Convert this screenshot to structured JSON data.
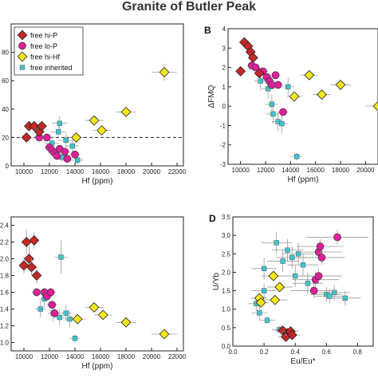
{
  "figure_title": "Granite of Butler Peak",
  "colors": {
    "free_hi_P": "#c62828",
    "free_lo_P": "#e0209a",
    "free_hi_Hf": "#f5e61c",
    "free_inherited": "#3cc6d0"
  },
  "chart_data": [
    {
      "panel": "",
      "type": "scatter",
      "xlabel": "Hf (ppm)",
      "ylabel": "",
      "xlim": [
        9000,
        22500
      ],
      "ylim": [
        0,
        100
      ],
      "xticks": [
        "10000",
        "12000",
        "14000",
        "16000",
        "18000",
        "20000",
        "22000"
      ],
      "yticks": [
        "0",
        "20",
        "40",
        "60",
        "80"
      ],
      "reference_line": {
        "y": 20,
        "style": "dashed"
      },
      "legend": {
        "placement": "top-left",
        "entries": [
          {
            "label": "free hi-P",
            "series": "free_hi_P"
          },
          {
            "label": "free lo-P",
            "series": "free_lo_P"
          },
          {
            "label": "free hi-Hf",
            "series": "free_hi_Hf"
          },
          {
            "label": "free inherited",
            "series": "free_inherited"
          }
        ]
      },
      "series": [
        {
          "name": "free hi-P",
          "key": "free_hi_P",
          "marker": "diamond",
          "points": [
            [
              10200,
              20,
              300,
              0
            ],
            [
              10400,
              28,
              300,
              0
            ],
            [
              10800,
              28,
              300,
              0
            ],
            [
              11200,
              24,
              300,
              0
            ],
            [
              11400,
              28,
              300,
              0
            ]
          ]
        },
        {
          "name": "free lo-P",
          "key": "free_lo_P",
          "marker": "circle",
          "points": [
            [
              11200,
              20,
              300,
              0
            ],
            [
              11800,
              20,
              400,
              0
            ],
            [
              12000,
              13,
              400,
              0
            ],
            [
              12200,
              11,
              400,
              0
            ],
            [
              12400,
              9,
              400,
              0
            ],
            [
              12600,
              7,
              400,
              0
            ],
            [
              12800,
              12,
              400,
              0
            ],
            [
              13400,
              5,
              400,
              0
            ],
            [
              14000,
              8,
              400,
              0
            ],
            [
              13200,
              10,
              400,
              0
            ]
          ]
        },
        {
          "name": "free hi-Hf",
          "key": "free_hi_Hf",
          "marker": "diamond",
          "points": [
            [
              14100,
              20,
              600,
              0
            ],
            [
              15500,
              32,
              700,
              0
            ],
            [
              16100,
              25,
              700,
              0
            ],
            [
              18000,
              38,
              800,
              0
            ],
            [
              21000,
              66,
              1000,
              6
            ]
          ]
        },
        {
          "name": "free inherited",
          "key": "free_inherited",
          "marker": "square",
          "points": [
            [
              12800,
              30,
              600,
              5
            ],
            [
              12700,
              24,
              600,
              5
            ],
            [
              13300,
              18,
              600,
              5
            ],
            [
              12200,
              16,
              600,
              4
            ],
            [
              13800,
              14,
              500,
              4
            ],
            [
              13000,
              6,
              500,
              3
            ],
            [
              14200,
              4,
              500,
              3
            ]
          ]
        }
      ]
    },
    {
      "panel": "B",
      "type": "scatter",
      "xlabel": "Hf (ppm)",
      "ylabel": "ΔFMQ",
      "xlim": [
        9000,
        21000
      ],
      "ylim": [
        -3,
        4
      ],
      "xticks": [
        "10000",
        "12000",
        "14000",
        "16000",
        "18000",
        "20000"
      ],
      "yticks": [
        "-3",
        "-2",
        "-1",
        "0",
        "1",
        "2",
        "3",
        "4"
      ],
      "series": [
        {
          "name": "free hi-P",
          "key": "free_hi_P",
          "marker": "diamond",
          "points": [
            [
              10300,
              3.3,
              300,
              0
            ],
            [
              10600,
              3.1,
              300,
              0
            ],
            [
              10800,
              2.8,
              300,
              0
            ],
            [
              11000,
              2.5,
              300,
              0
            ],
            [
              10000,
              1.8,
              300,
              0
            ],
            [
              11500,
              1.7,
              300,
              0
            ]
          ]
        },
        {
          "name": "free lo-P",
          "key": "free_lo_P",
          "marker": "circle",
          "points": [
            [
              10900,
              2.1,
              400,
              0
            ],
            [
              11200,
              2.0,
              400,
              0
            ],
            [
              11800,
              1.8,
              400,
              0
            ],
            [
              12100,
              1.5,
              400,
              0
            ],
            [
              12300,
              1.3,
              400,
              0
            ],
            [
              12500,
              1.1,
              400,
              0
            ],
            [
              13000,
              1.1,
              400,
              0
            ],
            [
              12800,
              1.6,
              400,
              0
            ],
            [
              13400,
              -0.3,
              400,
              0
            ]
          ]
        },
        {
          "name": "free hi-Hf",
          "key": "free_hi_Hf",
          "marker": "diamond",
          "points": [
            [
              14300,
              0.5,
              600,
              0
            ],
            [
              15500,
              1.6,
              700,
              0
            ],
            [
              16500,
              0.6,
              700,
              0
            ],
            [
              18000,
              1.1,
              800,
              0
            ],
            [
              21000,
              0,
              1000,
              0
            ]
          ]
        },
        {
          "name": "free inherited",
          "key": "free_inherited",
          "marker": "square",
          "points": [
            [
              11600,
              1.3,
              500,
              0.5
            ],
            [
              12200,
              0.9,
              500,
              0.5
            ],
            [
              12500,
              0.1,
              500,
              0.5
            ],
            [
              13000,
              -0.8,
              500,
              0.5
            ],
            [
              13300,
              -0.9,
              500,
              0.5
            ],
            [
              12600,
              -0.4,
              500,
              0.5
            ],
            [
              14500,
              -2.6,
              400,
              0.2
            ],
            [
              13800,
              1.0,
              500,
              0.5
            ]
          ]
        }
      ]
    },
    {
      "panel": "",
      "type": "scatter",
      "xlabel": "Hf (ppm)",
      "ylabel": "",
      "xlim": [
        9000,
        22500
      ],
      "ylim": [
        0.9,
        2.5
      ],
      "xticks": [
        "10000",
        "12000",
        "14000",
        "16000",
        "18000",
        "20000",
        "22000"
      ],
      "yticks": [
        "1.0",
        "1.2",
        "1.4",
        "1.6",
        "1.8",
        "2.0",
        "2.2",
        "2.4"
      ],
      "series": [
        {
          "name": "free hi-P",
          "key": "free_hi_P",
          "marker": "diamond",
          "points": [
            [
              10200,
              2.2,
              300,
              0.15
            ],
            [
              10400,
              2.0,
              300,
              0.15
            ],
            [
              10000,
              1.92,
              300,
              0.1
            ],
            [
              10600,
              1.9,
              300,
              0.1
            ],
            [
              10800,
              2.22,
              300,
              0.1
            ],
            [
              11000,
              1.8,
              300,
              0.1
            ]
          ]
        },
        {
          "name": "free lo-P",
          "key": "free_lo_P",
          "marker": "circle",
          "points": [
            [
              11600,
              1.6,
              400,
              0.05
            ],
            [
              11800,
              1.55,
              400,
              0.05
            ],
            [
              12100,
              1.6,
              400,
              0.05
            ],
            [
              12200,
              1.45,
              400,
              0.05
            ],
            [
              11000,
              1.6,
              400,
              0.05
            ],
            [
              12400,
              1.35,
              400,
              0.05
            ]
          ]
        },
        {
          "name": "free hi-Hf",
          "key": "free_hi_Hf",
          "marker": "diamond",
          "points": [
            [
              14200,
              1.28,
              600,
              0
            ],
            [
              15500,
              1.42,
              700,
              0
            ],
            [
              16200,
              1.33,
              700,
              0
            ],
            [
              18000,
              1.24,
              800,
              0
            ],
            [
              21000,
              1.1,
              1000,
              0
            ]
          ]
        },
        {
          "name": "free inherited",
          "key": "free_inherited",
          "marker": "square",
          "points": [
            [
              12900,
              2.02,
              500,
              0.2
            ],
            [
              11600,
              1.52,
              400,
              0.1
            ],
            [
              12300,
              1.35,
              400,
              0.1
            ],
            [
              13300,
              1.35,
              400,
              0.1
            ],
            [
              13600,
              1.28,
              400,
              0.1
            ],
            [
              12800,
              1.3,
              400,
              0.1
            ],
            [
              14000,
              1.05,
              400,
              0.05
            ],
            [
              11300,
              1.4,
              400,
              0.1
            ]
          ]
        }
      ]
    },
    {
      "panel": "D",
      "type": "scatter",
      "xlabel": "Eu/Eu*",
      "ylabel": "U/Yb",
      "xlim": [
        0,
        0.9
      ],
      "ylim": [
        0,
        3.5
      ],
      "xticks": [
        "0.0",
        "0.2",
        "0.4",
        "0.6",
        "0.8"
      ],
      "yticks": [
        "0.0",
        "0.5",
        "1.0",
        "1.5",
        "2.0",
        "2.5",
        "3.0",
        "3.5"
      ],
      "series": [
        {
          "name": "free hi-P",
          "key": "free_hi_P",
          "marker": "diamond",
          "points": [
            [
              0.32,
              0.42,
              0.05,
              0
            ],
            [
              0.35,
              0.35,
              0.05,
              0
            ],
            [
              0.34,
              0.25,
              0.05,
              0
            ],
            [
              0.37,
              0.4,
              0.05,
              0
            ],
            [
              0.38,
              0.3,
              0.05,
              0
            ]
          ]
        },
        {
          "name": "free lo-P",
          "key": "free_lo_P",
          "marker": "circle",
          "points": [
            [
              0.55,
              2.55,
              0.15,
              0.2
            ],
            [
              0.56,
              2.7,
              0.15,
              0.2
            ],
            [
              0.57,
              2.4,
              0.15,
              0.2
            ],
            [
              0.53,
              1.8,
              0.15,
              0.2
            ],
            [
              0.52,
              1.5,
              0.15,
              0.2
            ],
            [
              0.67,
              2.95,
              0.2,
              0.2
            ],
            [
              0.55,
              1.9,
              0.15,
              0.2
            ]
          ]
        },
        {
          "name": "free hi-Hf",
          "key": "free_hi_Hf",
          "marker": "diamond",
          "points": [
            [
              0.17,
              1.3,
              0.05,
              0.1
            ],
            [
              0.26,
              1.9,
              0.08,
              0.1
            ],
            [
              0.3,
              1.6,
              0.08,
              0.1
            ],
            [
              0.27,
              1.25,
              0.08,
              0.1
            ],
            [
              0.18,
              1.18,
              0.05,
              0.1
            ]
          ]
        },
        {
          "name": "free inherited",
          "key": "free_inherited",
          "marker": "square",
          "points": [
            [
              0.2,
              2.1,
              0.08,
              0.3
            ],
            [
              0.32,
              2.3,
              0.1,
              0.3
            ],
            [
              0.35,
              2.6,
              0.1,
              0.3
            ],
            [
              0.38,
              2.4,
              0.1,
              0.3
            ],
            [
              0.42,
              2.5,
              0.1,
              0.3
            ],
            [
              0.28,
              2.8,
              0.1,
              0.3
            ],
            [
              0.45,
              2.2,
              0.1,
              0.3
            ],
            [
              0.48,
              1.7,
              0.1,
              0.3
            ],
            [
              0.4,
              1.9,
              0.1,
              0.3
            ],
            [
              0.2,
              1.5,
              0.08,
              0.2
            ],
            [
              0.15,
              1.15,
              0.05,
              0.2
            ],
            [
              0.6,
              1.4,
              0.1,
              0.2
            ],
            [
              0.72,
              1.3,
              0.1,
              0.2
            ],
            [
              0.17,
              0.9,
              0.05,
              0.2
            ],
            [
              0.22,
              0.7,
              0.05,
              0.1
            ],
            [
              0.3,
              0.45,
              0.05,
              0.1
            ],
            [
              0.65,
              1.45,
              0.1,
              0.2
            ],
            [
              0.62,
              1.35,
              0.1,
              0.2
            ]
          ]
        }
      ]
    }
  ]
}
